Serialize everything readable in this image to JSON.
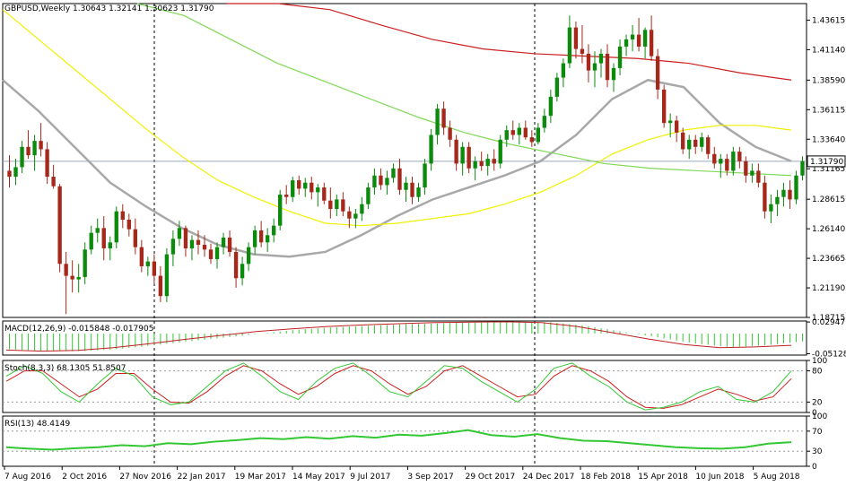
{
  "header": {
    "main": "GBPUSD,Weekly  1.30643 1.32141 1.30623 1.31790",
    "macd": "MACD(12,26,9) -0.015848 -0.017905",
    "stoch": "Stoch(8,3,3) 68.1305 51.8507",
    "rsi": "RSI(13) 48.4149"
  },
  "price_axis": {
    "ticks": [
      "1.43615",
      "1.41140",
      "1.38590",
      "1.36115",
      "1.33640",
      "1.31165",
      "1.28615",
      "1.26140",
      "1.23665",
      "1.21190",
      "1.18715"
    ],
    "current_label": "1.31790"
  },
  "macd_axis": {
    "ticks": [
      "0.029477",
      "-0.051285"
    ]
  },
  "stoch_axis": {
    "ticks": [
      "100",
      "80",
      "20",
      "0"
    ]
  },
  "rsi_axis": {
    "ticks": [
      "100",
      "70",
      "30",
      "0"
    ]
  },
  "time_axis": [
    "7 Aug 2016",
    "2 Oct 2016",
    "27 Nov 2016",
    "22 Jan 2017",
    "19 Mar 2017",
    "14 May 2017",
    "9 Jul 2017",
    "3 Sep 2017",
    "29 Oct 2017",
    "24 Dec 2017",
    "18 Feb 2018",
    "15 Apr 2018",
    "10 Jun 2018",
    "5 Aug 2018"
  ],
  "colors": {
    "bull": "#0b8a0b",
    "bear": "#a5281a",
    "ma_gray": "#a8a8a8",
    "ma_yellow": "#f0f000",
    "ma_lime": "#7ed957",
    "ma_red": "#cc1f1f",
    "macd_hist": "#33c833",
    "macd_signal": "#c02020",
    "stoch_main": "#33c833",
    "stoch_signal": "#cc2020",
    "rsi": "#33c833"
  },
  "chart_data": {
    "type": "candlestick",
    "symbol": "GBPUSD",
    "timeframe": "Weekly",
    "ylim": [
      1.18715,
      1.45
    ],
    "candles": [
      [
        1.31,
        1.323,
        1.296,
        1.305
      ],
      [
        1.305,
        1.32,
        1.298,
        1.313
      ],
      [
        1.313,
        1.335,
        1.308,
        1.33
      ],
      [
        1.33,
        1.344,
        1.32,
        1.323
      ],
      [
        1.323,
        1.34,
        1.31,
        1.335
      ],
      [
        1.335,
        1.35,
        1.322,
        1.328
      ],
      [
        1.328,
        1.334,
        1.299,
        1.305
      ],
      [
        1.305,
        1.315,
        1.295,
        1.297
      ],
      [
        1.297,
        1.299,
        1.225,
        1.232
      ],
      [
        1.232,
        1.242,
        1.19,
        1.222
      ],
      [
        1.222,
        1.235,
        1.208,
        1.219
      ],
      [
        1.219,
        1.232,
        1.208,
        1.221
      ],
      [
        1.221,
        1.25,
        1.215,
        1.244
      ],
      [
        1.244,
        1.264,
        1.24,
        1.258
      ],
      [
        1.258,
        1.27,
        1.25,
        1.262
      ],
      [
        1.262,
        1.272,
        1.235,
        1.245
      ],
      [
        1.245,
        1.255,
        1.235,
        1.25
      ],
      [
        1.25,
        1.28,
        1.245,
        1.276
      ],
      [
        1.276,
        1.282,
        1.262,
        1.269
      ],
      [
        1.269,
        1.274,
        1.255,
        1.261
      ],
      [
        1.261,
        1.27,
        1.24,
        1.246
      ],
      [
        1.246,
        1.252,
        1.225,
        1.23
      ],
      [
        1.23,
        1.238,
        1.222,
        1.234
      ],
      [
        1.234,
        1.24,
        1.215,
        1.222
      ],
      [
        1.222,
        1.23,
        1.2,
        1.205
      ],
      [
        1.205,
        1.245,
        1.2,
        1.24
      ],
      [
        1.24,
        1.26,
        1.23,
        1.253
      ],
      [
        1.253,
        1.268,
        1.247,
        1.262
      ],
      [
        1.262,
        1.264,
        1.238,
        1.245
      ],
      [
        1.245,
        1.256,
        1.235,
        1.252
      ],
      [
        1.252,
        1.26,
        1.24,
        1.248
      ],
      [
        1.248,
        1.256,
        1.238,
        1.244
      ],
      [
        1.244,
        1.249,
        1.232,
        1.236
      ],
      [
        1.236,
        1.25,
        1.228,
        1.246
      ],
      [
        1.246,
        1.258,
        1.24,
        1.254
      ],
      [
        1.254,
        1.26,
        1.238,
        1.242
      ],
      [
        1.242,
        1.246,
        1.212,
        1.22
      ],
      [
        1.22,
        1.238,
        1.214,
        1.232
      ],
      [
        1.232,
        1.25,
        1.226,
        1.246
      ],
      [
        1.246,
        1.264,
        1.24,
        1.26
      ],
      [
        1.26,
        1.268,
        1.246,
        1.25
      ],
      [
        1.25,
        1.262,
        1.242,
        1.256
      ],
      [
        1.256,
        1.27,
        1.25,
        1.264
      ],
      [
        1.264,
        1.294,
        1.26,
        1.29
      ],
      [
        1.29,
        1.298,
        1.282,
        1.288
      ],
      [
        1.288,
        1.305,
        1.284,
        1.302
      ],
      [
        1.302,
        1.306,
        1.29,
        1.295
      ],
      [
        1.295,
        1.304,
        1.288,
        1.3
      ],
      [
        1.3,
        1.305,
        1.286,
        1.292
      ],
      [
        1.292,
        1.299,
        1.28,
        1.296
      ],
      [
        1.296,
        1.3,
        1.282,
        1.285
      ],
      [
        1.285,
        1.296,
        1.27,
        1.278
      ],
      [
        1.278,
        1.29,
        1.272,
        1.286
      ],
      [
        1.286,
        1.292,
        1.272,
        1.276
      ],
      [
        1.276,
        1.28,
        1.262,
        1.27
      ],
      [
        1.27,
        1.278,
        1.262,
        1.274
      ],
      [
        1.274,
        1.288,
        1.268,
        1.282
      ],
      [
        1.282,
        1.3,
        1.278,
        1.296
      ],
      [
        1.296,
        1.312,
        1.29,
        1.306
      ],
      [
        1.306,
        1.312,
        1.294,
        1.298
      ],
      [
        1.298,
        1.31,
        1.29,
        1.304
      ],
      [
        1.304,
        1.316,
        1.3,
        1.312
      ],
      [
        1.312,
        1.32,
        1.29,
        1.294
      ],
      [
        1.294,
        1.305,
        1.284,
        1.3
      ],
      [
        1.3,
        1.305,
        1.282,
        1.288
      ],
      [
        1.288,
        1.3,
        1.284,
        1.296
      ],
      [
        1.296,
        1.32,
        1.29,
        1.316
      ],
      [
        1.316,
        1.345,
        1.31,
        1.34
      ],
      [
        1.34,
        1.366,
        1.332,
        1.362
      ],
      [
        1.362,
        1.368,
        1.34,
        1.346
      ],
      [
        1.346,
        1.352,
        1.33,
        1.336
      ],
      [
        1.336,
        1.34,
        1.31,
        1.316
      ],
      [
        1.316,
        1.334,
        1.306,
        1.33
      ],
      [
        1.33,
        1.334,
        1.308,
        1.312
      ],
      [
        1.312,
        1.322,
        1.302,
        1.318
      ],
      [
        1.318,
        1.326,
        1.31,
        1.314
      ],
      [
        1.314,
        1.324,
        1.306,
        1.32
      ],
      [
        1.32,
        1.328,
        1.31,
        1.316
      ],
      [
        1.316,
        1.34,
        1.312,
        1.336
      ],
      [
        1.336,
        1.348,
        1.33,
        1.344
      ],
      [
        1.344,
        1.352,
        1.336,
        1.34
      ],
      [
        1.34,
        1.35,
        1.332,
        1.346
      ],
      [
        1.346,
        1.352,
        1.336,
        1.338
      ],
      [
        1.338,
        1.344,
        1.33,
        1.334
      ],
      [
        1.334,
        1.35,
        1.332,
        1.346
      ],
      [
        1.346,
        1.362,
        1.342,
        1.356
      ],
      [
        1.356,
        1.378,
        1.35,
        1.372
      ],
      [
        1.372,
        1.392,
        1.368,
        1.388
      ],
      [
        1.388,
        1.404,
        1.38,
        1.4
      ],
      [
        1.4,
        1.44,
        1.396,
        1.43
      ],
      [
        1.43,
        1.435,
        1.404,
        1.412
      ],
      [
        1.412,
        1.432,
        1.4,
        1.408
      ],
      [
        1.408,
        1.416,
        1.384,
        1.394
      ],
      [
        1.394,
        1.41,
        1.38,
        1.4
      ],
      [
        1.4,
        1.412,
        1.388,
        1.408
      ],
      [
        1.408,
        1.416,
        1.38,
        1.386
      ],
      [
        1.386,
        1.4,
        1.376,
        1.396
      ],
      [
        1.396,
        1.42,
        1.39,
        1.414
      ],
      [
        1.414,
        1.424,
        1.406,
        1.42
      ],
      [
        1.42,
        1.432,
        1.41,
        1.424
      ],
      [
        1.424,
        1.438,
        1.41,
        1.414
      ],
      [
        1.414,
        1.43,
        1.404,
        1.428
      ],
      [
        1.428,
        1.44,
        1.402,
        1.406
      ],
      [
        1.406,
        1.412,
        1.37,
        1.378
      ],
      [
        1.378,
        1.382,
        1.346,
        1.35
      ],
      [
        1.35,
        1.358,
        1.338,
        1.352
      ],
      [
        1.352,
        1.356,
        1.334,
        1.342
      ],
      [
        1.342,
        1.346,
        1.324,
        1.328
      ],
      [
        1.328,
        1.34,
        1.32,
        1.336
      ],
      [
        1.336,
        1.34,
        1.324,
        1.33
      ],
      [
        1.33,
        1.342,
        1.326,
        1.338
      ],
      [
        1.338,
        1.34,
        1.32,
        1.324
      ],
      [
        1.324,
        1.33,
        1.312,
        1.316
      ],
      [
        1.316,
        1.324,
        1.304,
        1.32
      ],
      [
        1.32,
        1.324,
        1.306,
        1.31
      ],
      [
        1.31,
        1.33,
        1.306,
        1.326
      ],
      [
        1.326,
        1.33,
        1.312,
        1.318
      ],
      [
        1.318,
        1.322,
        1.3,
        1.306
      ],
      [
        1.306,
        1.316,
        1.3,
        1.31
      ],
      [
        1.31,
        1.316,
        1.296,
        1.3
      ],
      [
        1.3,
        1.306,
        1.27,
        1.276
      ],
      [
        1.276,
        1.29,
        1.266,
        1.282
      ],
      [
        1.282,
        1.294,
        1.272,
        1.288
      ],
      [
        1.288,
        1.3,
        1.28,
        1.294
      ],
      [
        1.294,
        1.302,
        1.278,
        1.286
      ],
      [
        1.286,
        1.31,
        1.282,
        1.306
      ],
      [
        1.306,
        1.322,
        1.302,
        1.318
      ]
    ],
    "moving_averages": [
      {
        "color": "gray",
        "values": [
          1.386,
          1.36,
          1.33,
          1.3,
          1.28,
          1.262,
          1.248,
          1.24,
          1.238,
          1.242,
          1.256,
          1.272,
          1.286,
          1.296,
          1.306,
          1.318,
          1.34,
          1.37,
          1.386,
          1.38,
          1.35,
          1.33,
          1.318
        ]
      },
      {
        "color": "yellow",
        "values": [
          1.445,
          1.42,
          1.395,
          1.37,
          1.345,
          1.322,
          1.302,
          1.288,
          1.276,
          1.266,
          1.264,
          1.266,
          1.27,
          1.274,
          1.282,
          1.292,
          1.306,
          1.324,
          1.336,
          1.344,
          1.348,
          1.348,
          1.344
        ]
      },
      {
        "color": "lime",
        "values": [
          1.47,
          1.44,
          1.42,
          1.4,
          1.385,
          1.37,
          1.355,
          1.342,
          1.332,
          1.324,
          1.316,
          1.312,
          1.31,
          1.308,
          1.306
        ]
      },
      {
        "color": "red",
        "values": [
          1.47,
          1.46,
          1.445,
          1.432,
          1.42,
          1.412,
          1.408,
          1.406,
          1.404,
          1.4,
          1.392,
          1.386
        ]
      }
    ],
    "macd": {
      "ylim": [
        -0.055,
        0.032
      ],
      "histogram_envelope": [
        -0.04,
        -0.045,
        -0.045,
        -0.04,
        -0.03,
        -0.02,
        -0.01,
        0.0,
        0.01,
        0.016,
        0.02,
        0.024,
        0.026,
        0.028,
        0.03,
        0.029,
        0.02,
        0.005,
        -0.01,
        -0.025,
        -0.035,
        -0.03,
        -0.02
      ],
      "signal": [
        -0.042,
        -0.045,
        -0.043,
        -0.036,
        -0.026,
        -0.015,
        -0.005,
        0.005,
        0.012,
        0.018,
        0.022,
        0.025,
        0.028,
        0.029,
        0.03,
        0.028,
        0.018,
        0.002,
        -0.014,
        -0.028,
        -0.036,
        -0.034,
        -0.03
      ]
    },
    "stochastic": {
      "ylim": [
        0,
        100
      ],
      "levels": [
        80,
        20
      ],
      "main": [
        70,
        90,
        75,
        40,
        20,
        55,
        85,
        70,
        30,
        15,
        20,
        50,
        80,
        95,
        70,
        40,
        25,
        60,
        85,
        95,
        70,
        40,
        30,
        60,
        90,
        85,
        60,
        40,
        20,
        45,
        85,
        95,
        70,
        50,
        20,
        5,
        10,
        20,
        40,
        50,
        25,
        20,
        40,
        80
      ],
      "signal": [
        60,
        80,
        80,
        55,
        30,
        45,
        75,
        75,
        45,
        20,
        18,
        40,
        70,
        90,
        80,
        55,
        35,
        50,
        75,
        90,
        80,
        55,
        35,
        50,
        80,
        90,
        70,
        50,
        30,
        35,
        70,
        90,
        80,
        60,
        30,
        10,
        8,
        15,
        30,
        45,
        35,
        22,
        30,
        65
      ]
    },
    "rsi": {
      "ylim": [
        0,
        100
      ],
      "levels": [
        70,
        30
      ],
      "values": [
        38,
        35,
        33,
        36,
        38,
        42,
        40,
        46,
        44,
        49,
        52,
        56,
        54,
        58,
        55,
        60,
        57,
        63,
        61,
        66,
        72,
        62,
        59,
        64,
        56,
        51,
        50,
        46,
        42,
        38,
        36,
        35,
        38,
        45,
        48
      ]
    }
  }
}
